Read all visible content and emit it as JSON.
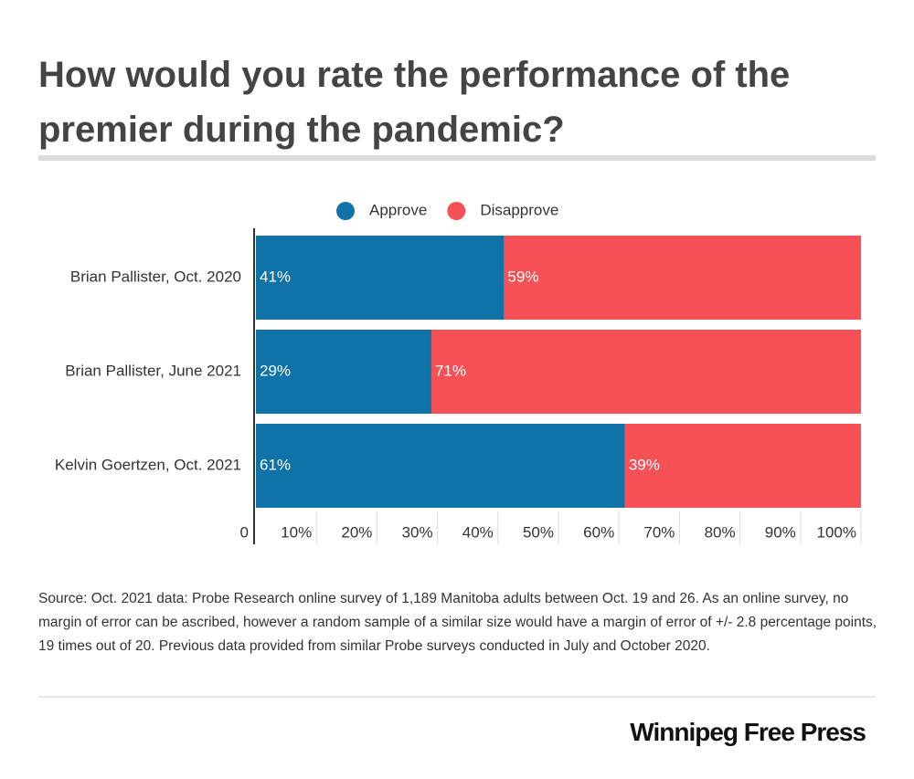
{
  "chart_data": {
    "type": "stacked-bar",
    "orientation": "horizontal",
    "title": "How would you rate the performance of the premier during the pandemic?",
    "categories": [
      "Brian Pallister, Oct. 2020",
      "Brian Pallister, June 2021",
      "Kelvin Goertzen, Oct. 2021"
    ],
    "series": [
      {
        "name": "Approve",
        "color": "#0f73a8",
        "values": [
          41,
          29,
          61
        ],
        "value_labels": [
          "41%",
          "29%",
          "61%"
        ]
      },
      {
        "name": "Disapprove",
        "color": "#f55156",
        "values": [
          59,
          71,
          39
        ],
        "value_labels": [
          "59%",
          "71%",
          "39%"
        ]
      }
    ],
    "xlim": [
      0,
      100
    ],
    "xticks": [
      0,
      {
        "value": 10,
        "label": "10%"
      },
      {
        "value": 20,
        "label": "20%"
      },
      {
        "value": 30,
        "label": "30%"
      },
      {
        "value": 40,
        "label": "40%"
      },
      {
        "value": 50,
        "label": "50%"
      },
      {
        "value": 60,
        "label": "60%"
      },
      {
        "value": 70,
        "label": "70%"
      },
      {
        "value": 80,
        "label": "80%"
      },
      {
        "value": 90,
        "label": "90%"
      },
      {
        "value": 100,
        "label": "100%"
      }
    ],
    "legend": "top"
  },
  "source": "Source: Oct. 2021 data: Probe Research online survey of 1,189 Manitoba adults between Oct. 19 and 26. As an online survey, no margin of error can be ascribed, however a random sample of a similar size would have a margin of error of +/- 2.8 percentage points, 19 times out of 20. Previous data provided from similar Probe surveys conducted in July and October 2020.",
  "credit": "Winnipeg Free Press"
}
